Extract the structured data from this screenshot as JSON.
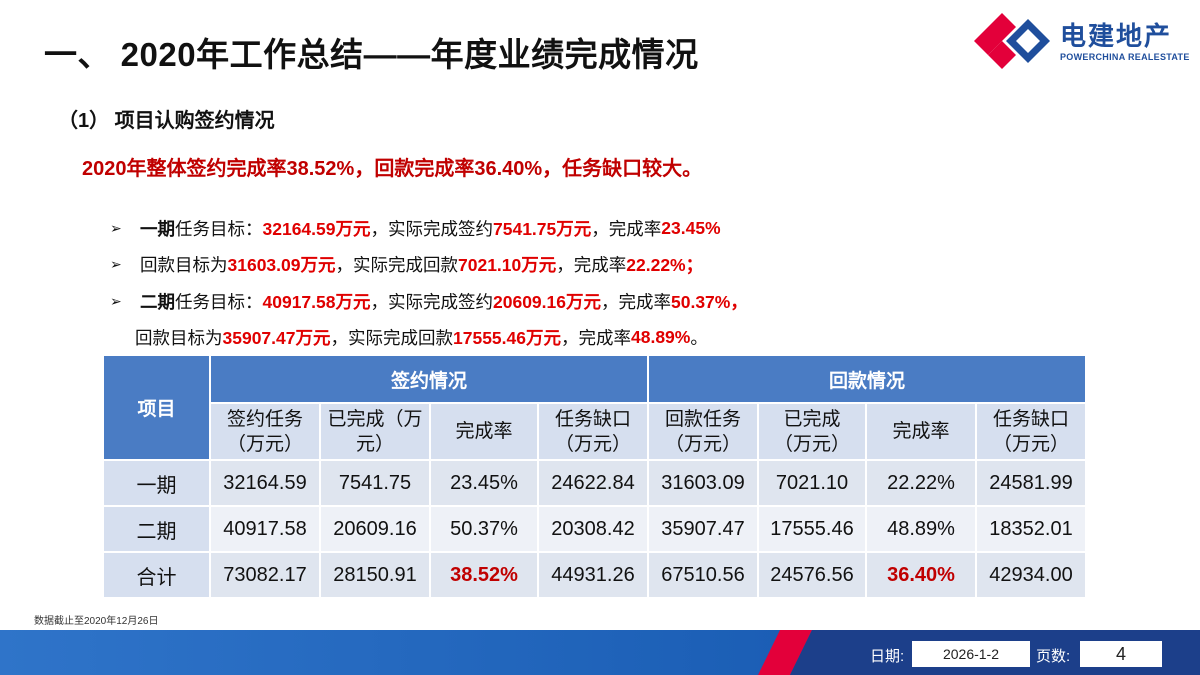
{
  "header": {
    "title": "一、 2020年工作总结——年度业绩完成情况",
    "logo": {
      "name": "电建地产",
      "sub": "POWERCHINA REALESTATE",
      "colors": [
        "#e3003a",
        "#1f4e9c"
      ]
    }
  },
  "subtitle": "（1） 项目认购签约情况",
  "summary": "2020年整体签约完成率38.52%，回款完成率36.40%，任务缺口较大。",
  "bullets": [
    {
      "arrow": true,
      "parts": [
        {
          "t": "一期",
          "s": "b"
        },
        {
          "t": "任务目标：",
          "s": ""
        },
        {
          "t": "32164.59万元",
          "s": "r"
        },
        {
          "t": "，实际完成签约",
          "s": ""
        },
        {
          "t": "7541.75万元",
          "s": "r"
        },
        {
          "t": "，完成率",
          "s": ""
        },
        {
          "t": "23.45%",
          "s": "r"
        }
      ]
    },
    {
      "arrow": true,
      "parts": [
        {
          "t": "回款目标为",
          "s": ""
        },
        {
          "t": "31603.09万元",
          "s": "r"
        },
        {
          "t": "，实际完成回款",
          "s": ""
        },
        {
          "t": "7021.10万元",
          "s": "r"
        },
        {
          "t": "，完成率",
          "s": ""
        },
        {
          "t": "22.22%；",
          "s": "r"
        }
      ]
    },
    {
      "arrow": true,
      "parts": [
        {
          "t": "二期",
          "s": "b"
        },
        {
          "t": "任务目标：",
          "s": ""
        },
        {
          "t": "40917.58万元",
          "s": "r"
        },
        {
          "t": "，实际完成签约",
          "s": ""
        },
        {
          "t": "20609.16万元",
          "s": "r"
        },
        {
          "t": "，完成率",
          "s": ""
        },
        {
          "t": "50.37%，",
          "s": "r"
        }
      ]
    },
    {
      "arrow": false,
      "parts": [
        {
          "t": "回款目标为",
          "s": ""
        },
        {
          "t": "35907.47万元",
          "s": "r"
        },
        {
          "t": "，实际完成回款",
          "s": ""
        },
        {
          "t": "17555.46万元",
          "s": "r"
        },
        {
          "t": "，完成率",
          "s": ""
        },
        {
          "t": "48.89%",
          "s": "r"
        },
        {
          "t": "。",
          "s": ""
        }
      ]
    }
  ],
  "table": {
    "project_header": "项目",
    "group_headers": [
      "签约情况",
      "回款情况"
    ],
    "columns": [
      [
        "签约任务",
        "（万元）"
      ],
      [
        "已完成（万",
        "元）"
      ],
      [
        "完成率"
      ],
      [
        "任务缺口",
        "（万元）"
      ],
      [
        "回款任务",
        "（万元）"
      ],
      [
        "已完成",
        "（万元）"
      ],
      [
        "完成率"
      ],
      [
        "任务缺口",
        "（万元）"
      ]
    ],
    "rows": [
      {
        "label": "一期",
        "cells": [
          "32164.59",
          "7541.75",
          "23.45%",
          "24622.84",
          "31603.09",
          "7021.10",
          "22.22%",
          "24581.99"
        ]
      },
      {
        "label": "二期",
        "cells": [
          "40917.58",
          "20609.16",
          "50.37%",
          "20308.42",
          "35907.47",
          "17555.46",
          "48.89%",
          "18352.01"
        ]
      },
      {
        "label": "合计",
        "cells": [
          "73082.17",
          "28150.91",
          "38.52%",
          "44931.26",
          "67510.56",
          "24576.56",
          "36.40%",
          "42934.00"
        ]
      }
    ],
    "highlight_color": "#c00000"
  },
  "footnote": "数据截止至2020年12月26日",
  "footer": {
    "date_label": "日期:",
    "date_value": "2026-1-2",
    "page_label": "页数:",
    "page_value": "4"
  }
}
